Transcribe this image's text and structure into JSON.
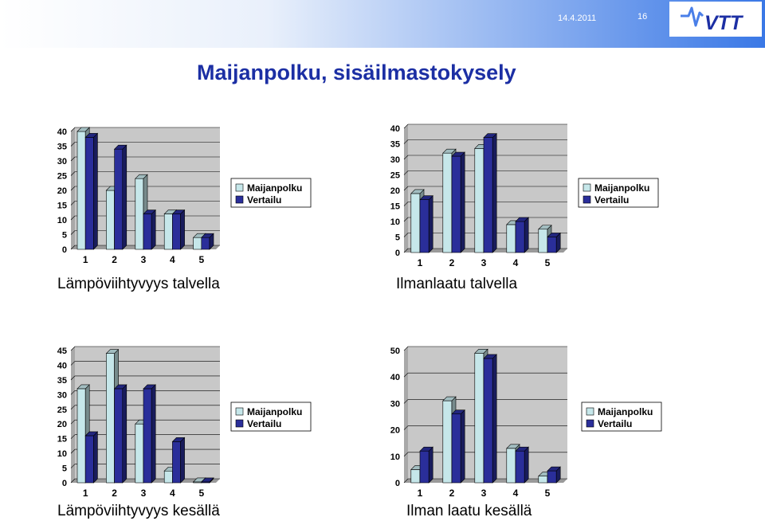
{
  "header": {
    "date": "14.4.2011",
    "page_number": "16",
    "logo": "VTT"
  },
  "title": "Maijanpolku, sisäilmastokysely",
  "colors": {
    "maijanpolku": "#c6e7ea",
    "vertailu": "#2a2e9a",
    "title": "#1c2fa4"
  },
  "chart_data": [
    {
      "type": "bar",
      "caption": "Lämpöviihtyvyys talvella",
      "categories": [
        "1",
        "2",
        "3",
        "4",
        "5"
      ],
      "series": [
        {
          "name": "Maijanpolku",
          "values": [
            40,
            20,
            24,
            12,
            4
          ]
        },
        {
          "name": "Vertailu",
          "values": [
            38,
            34,
            12,
            12,
            4
          ]
        }
      ],
      "ylim": [
        0,
        40
      ],
      "yticks": [
        0,
        5,
        10,
        15,
        20,
        25,
        30,
        35,
        40
      ],
      "grid": true,
      "legend": "right"
    },
    {
      "type": "bar",
      "caption": "Ilmanlaatu talvella",
      "categories": [
        "1",
        "2",
        "3",
        "4",
        "5"
      ],
      "series": [
        {
          "name": "Maijanpolku",
          "values": [
            19,
            32,
            33.5,
            9,
            7.5
          ]
        },
        {
          "name": "Vertailu",
          "values": [
            17,
            31,
            37,
            10,
            5
          ]
        }
      ],
      "ylim": [
        0,
        40
      ],
      "yticks": [
        0,
        5,
        10,
        15,
        20,
        25,
        30,
        35,
        40
      ],
      "grid": true,
      "legend": "right"
    },
    {
      "type": "bar",
      "caption": "Lämpöviihtyvyys kesällä",
      "categories": [
        "1",
        "2",
        "3",
        "4",
        "5"
      ],
      "series": [
        {
          "name": "Maijanpolku",
          "values": [
            32,
            44,
            20,
            4,
            0.3
          ]
        },
        {
          "name": "Vertailu",
          "values": [
            16,
            32,
            32,
            14,
            0.3
          ]
        }
      ],
      "ylim": [
        0,
        45
      ],
      "yticks": [
        0,
        5,
        10,
        15,
        20,
        25,
        30,
        35,
        40,
        45
      ],
      "grid": true,
      "legend": "right"
    },
    {
      "type": "bar",
      "caption": "Ilman laatu kesällä",
      "categories": [
        "1",
        "2",
        "3",
        "4",
        "5"
      ],
      "series": [
        {
          "name": "Maijanpolku",
          "values": [
            5,
            31,
            49,
            13,
            2.5
          ]
        },
        {
          "name": "Vertailu",
          "values": [
            12,
            26,
            47,
            12,
            4.5
          ]
        }
      ],
      "ylim": [
        0,
        50
      ],
      "yticks": [
        0,
        10,
        20,
        30,
        40,
        50
      ],
      "grid": true,
      "legend": "right"
    }
  ]
}
